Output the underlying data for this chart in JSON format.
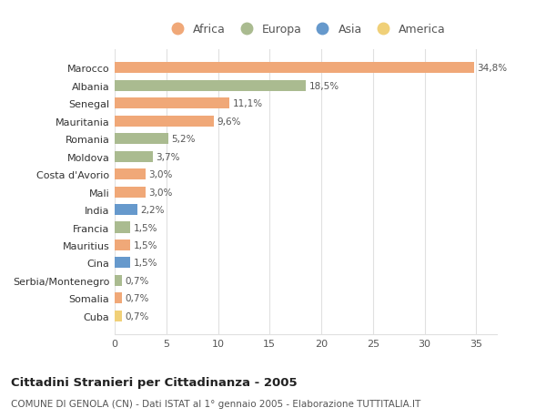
{
  "countries": [
    "Marocco",
    "Albania",
    "Senegal",
    "Mauritania",
    "Romania",
    "Moldova",
    "Costa d'Avorio",
    "Mali",
    "India",
    "Francia",
    "Mauritius",
    "Cina",
    "Serbia/Montenegro",
    "Somalia",
    "Cuba"
  ],
  "values": [
    34.8,
    18.5,
    11.1,
    9.6,
    5.2,
    3.7,
    3.0,
    3.0,
    2.2,
    1.5,
    1.5,
    1.5,
    0.7,
    0.7,
    0.7
  ],
  "labels": [
    "34,8%",
    "18,5%",
    "11,1%",
    "9,6%",
    "5,2%",
    "3,7%",
    "3,0%",
    "3,0%",
    "2,2%",
    "1,5%",
    "1,5%",
    "1,5%",
    "0,7%",
    "0,7%",
    "0,7%"
  ],
  "continents": [
    "Africa",
    "Europa",
    "Africa",
    "Africa",
    "Europa",
    "Europa",
    "Africa",
    "Africa",
    "Asia",
    "Europa",
    "Africa",
    "Asia",
    "Europa",
    "Africa",
    "America"
  ],
  "colors": {
    "Africa": "#F0A878",
    "Europa": "#AABB90",
    "Asia": "#6699CC",
    "America": "#F0D078"
  },
  "legend_order": [
    "Africa",
    "Europa",
    "Asia",
    "America"
  ],
  "title": "Cittadini Stranieri per Cittadinanza - 2005",
  "subtitle": "COMUNE DI GENOLA (CN) - Dati ISTAT al 1° gennaio 2005 - Elaborazione TUTTITALIA.IT",
  "xlim": [
    0,
    37
  ],
  "xticks": [
    0,
    5,
    10,
    15,
    20,
    25,
    30,
    35
  ],
  "bg_color": "#ffffff",
  "grid_color": "#e0e0e0"
}
